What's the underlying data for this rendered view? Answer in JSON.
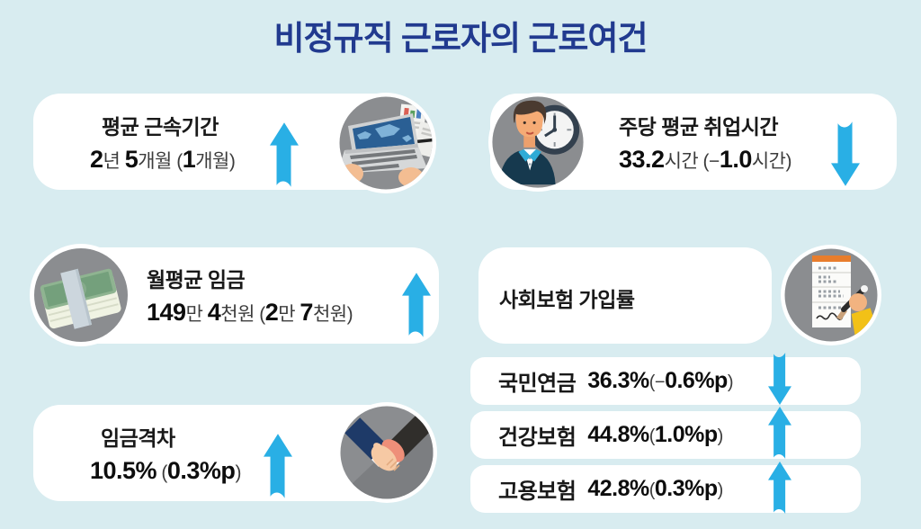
{
  "title": "비정규직 근로자의 근로여건",
  "colors": {
    "background": "#d8ecf0",
    "title": "#213a8f",
    "arrow": "#29afe5",
    "card": "#ffffff",
    "icon_circle": "#8b8d90",
    "text": "#191919"
  },
  "chart_data": {
    "type": "table",
    "title": "비정규직 근로자의 근로여건",
    "metrics": [
      {
        "name": "평균 근속기간",
        "value": "2년 5개월",
        "change": "1개월",
        "trend": "up"
      },
      {
        "name": "주당 평균 취업시간",
        "value": "33.2시간",
        "change": "-1.0시간",
        "trend": "down"
      },
      {
        "name": "월평균 임금",
        "value": "149만 4천원",
        "change": "2만 7천원",
        "trend": "up"
      },
      {
        "name": "임금격차",
        "value": "10.5%",
        "change": "0.3%p",
        "trend": "up"
      },
      {
        "name": "사회보험 가입률 - 국민연금",
        "value": "36.3%",
        "change": "-0.6%p",
        "trend": "down"
      },
      {
        "name": "사회보험 가입률 - 건강보험",
        "value": "44.8%",
        "change": "1.0%p",
        "trend": "up"
      },
      {
        "name": "사회보험 가입률 - 고용보험",
        "value": "42.8%",
        "change": "0.3%p",
        "trend": "up"
      }
    ]
  },
  "left": {
    "tenure": {
      "label": "평균 근속기간",
      "segments": [
        {
          "t": "2",
          "c": "n"
        },
        {
          "t": "년 ",
          "c": "u"
        },
        {
          "t": "5",
          "c": "n"
        },
        {
          "t": "개월 ",
          "c": "u"
        },
        {
          "t": "(",
          "c": "u"
        },
        {
          "t": "1",
          "c": "n"
        },
        {
          "t": "개월)",
          "c": "u"
        }
      ],
      "trend": "up",
      "icon": "laptop-worker-icon"
    },
    "wage": {
      "label": "월평균 임금",
      "segments": [
        {
          "t": "149",
          "c": "n"
        },
        {
          "t": "만 ",
          "c": "u"
        },
        {
          "t": "4",
          "c": "n"
        },
        {
          "t": "천원 ",
          "c": "u"
        },
        {
          "t": "(",
          "c": "u"
        },
        {
          "t": "2",
          "c": "n"
        },
        {
          "t": "만 ",
          "c": "u"
        },
        {
          "t": "7",
          "c": "n"
        },
        {
          "t": "천원)",
          "c": "u"
        }
      ],
      "trend": "up",
      "icon": "money-stack-icon"
    },
    "wage_gap": {
      "label": "임금격차",
      "segments": [
        {
          "t": "10.5%",
          "c": "n"
        },
        {
          "t": " (",
          "c": "u"
        },
        {
          "t": "0.3%p",
          "c": "n"
        },
        {
          "t": ")",
          "c": "u"
        }
      ],
      "trend": "up",
      "icon": "handshake-icon"
    }
  },
  "right": {
    "work_hours": {
      "label": "주당 평균 취업시간",
      "segments": [
        {
          "t": "33.2",
          "c": "n"
        },
        {
          "t": "시간 ",
          "c": "u"
        },
        {
          "t": "(−",
          "c": "u"
        },
        {
          "t": "1.0",
          "c": "n"
        },
        {
          "t": "시간)",
          "c": "u"
        }
      ],
      "trend": "down",
      "icon": "worker-clock-icon"
    },
    "social_insurance": {
      "label": "사회보험 가입률",
      "icon": "document-signing-icon",
      "rows": [
        {
          "label": "국민연금",
          "segments": [
            {
              "t": "36.3%",
              "c": "n"
            },
            {
              "t": "(−",
              "c": "u"
            },
            {
              "t": "0.6%p",
              "c": "n"
            },
            {
              "t": ")",
              "c": "u"
            }
          ],
          "trend": "down"
        },
        {
          "label": "건강보험",
          "segments": [
            {
              "t": "44.8%",
              "c": "n"
            },
            {
              "t": "(",
              "c": "u"
            },
            {
              "t": "1.0%p",
              "c": "n"
            },
            {
              "t": ")",
              "c": "u"
            }
          ],
          "trend": "up"
        },
        {
          "label": "고용보험",
          "segments": [
            {
              "t": "42.8%",
              "c": "n"
            },
            {
              "t": "(",
              "c": "u"
            },
            {
              "t": "0.3%p",
              "c": "n"
            },
            {
              "t": ")",
              "c": "u"
            }
          ],
          "trend": "up"
        }
      ]
    }
  }
}
